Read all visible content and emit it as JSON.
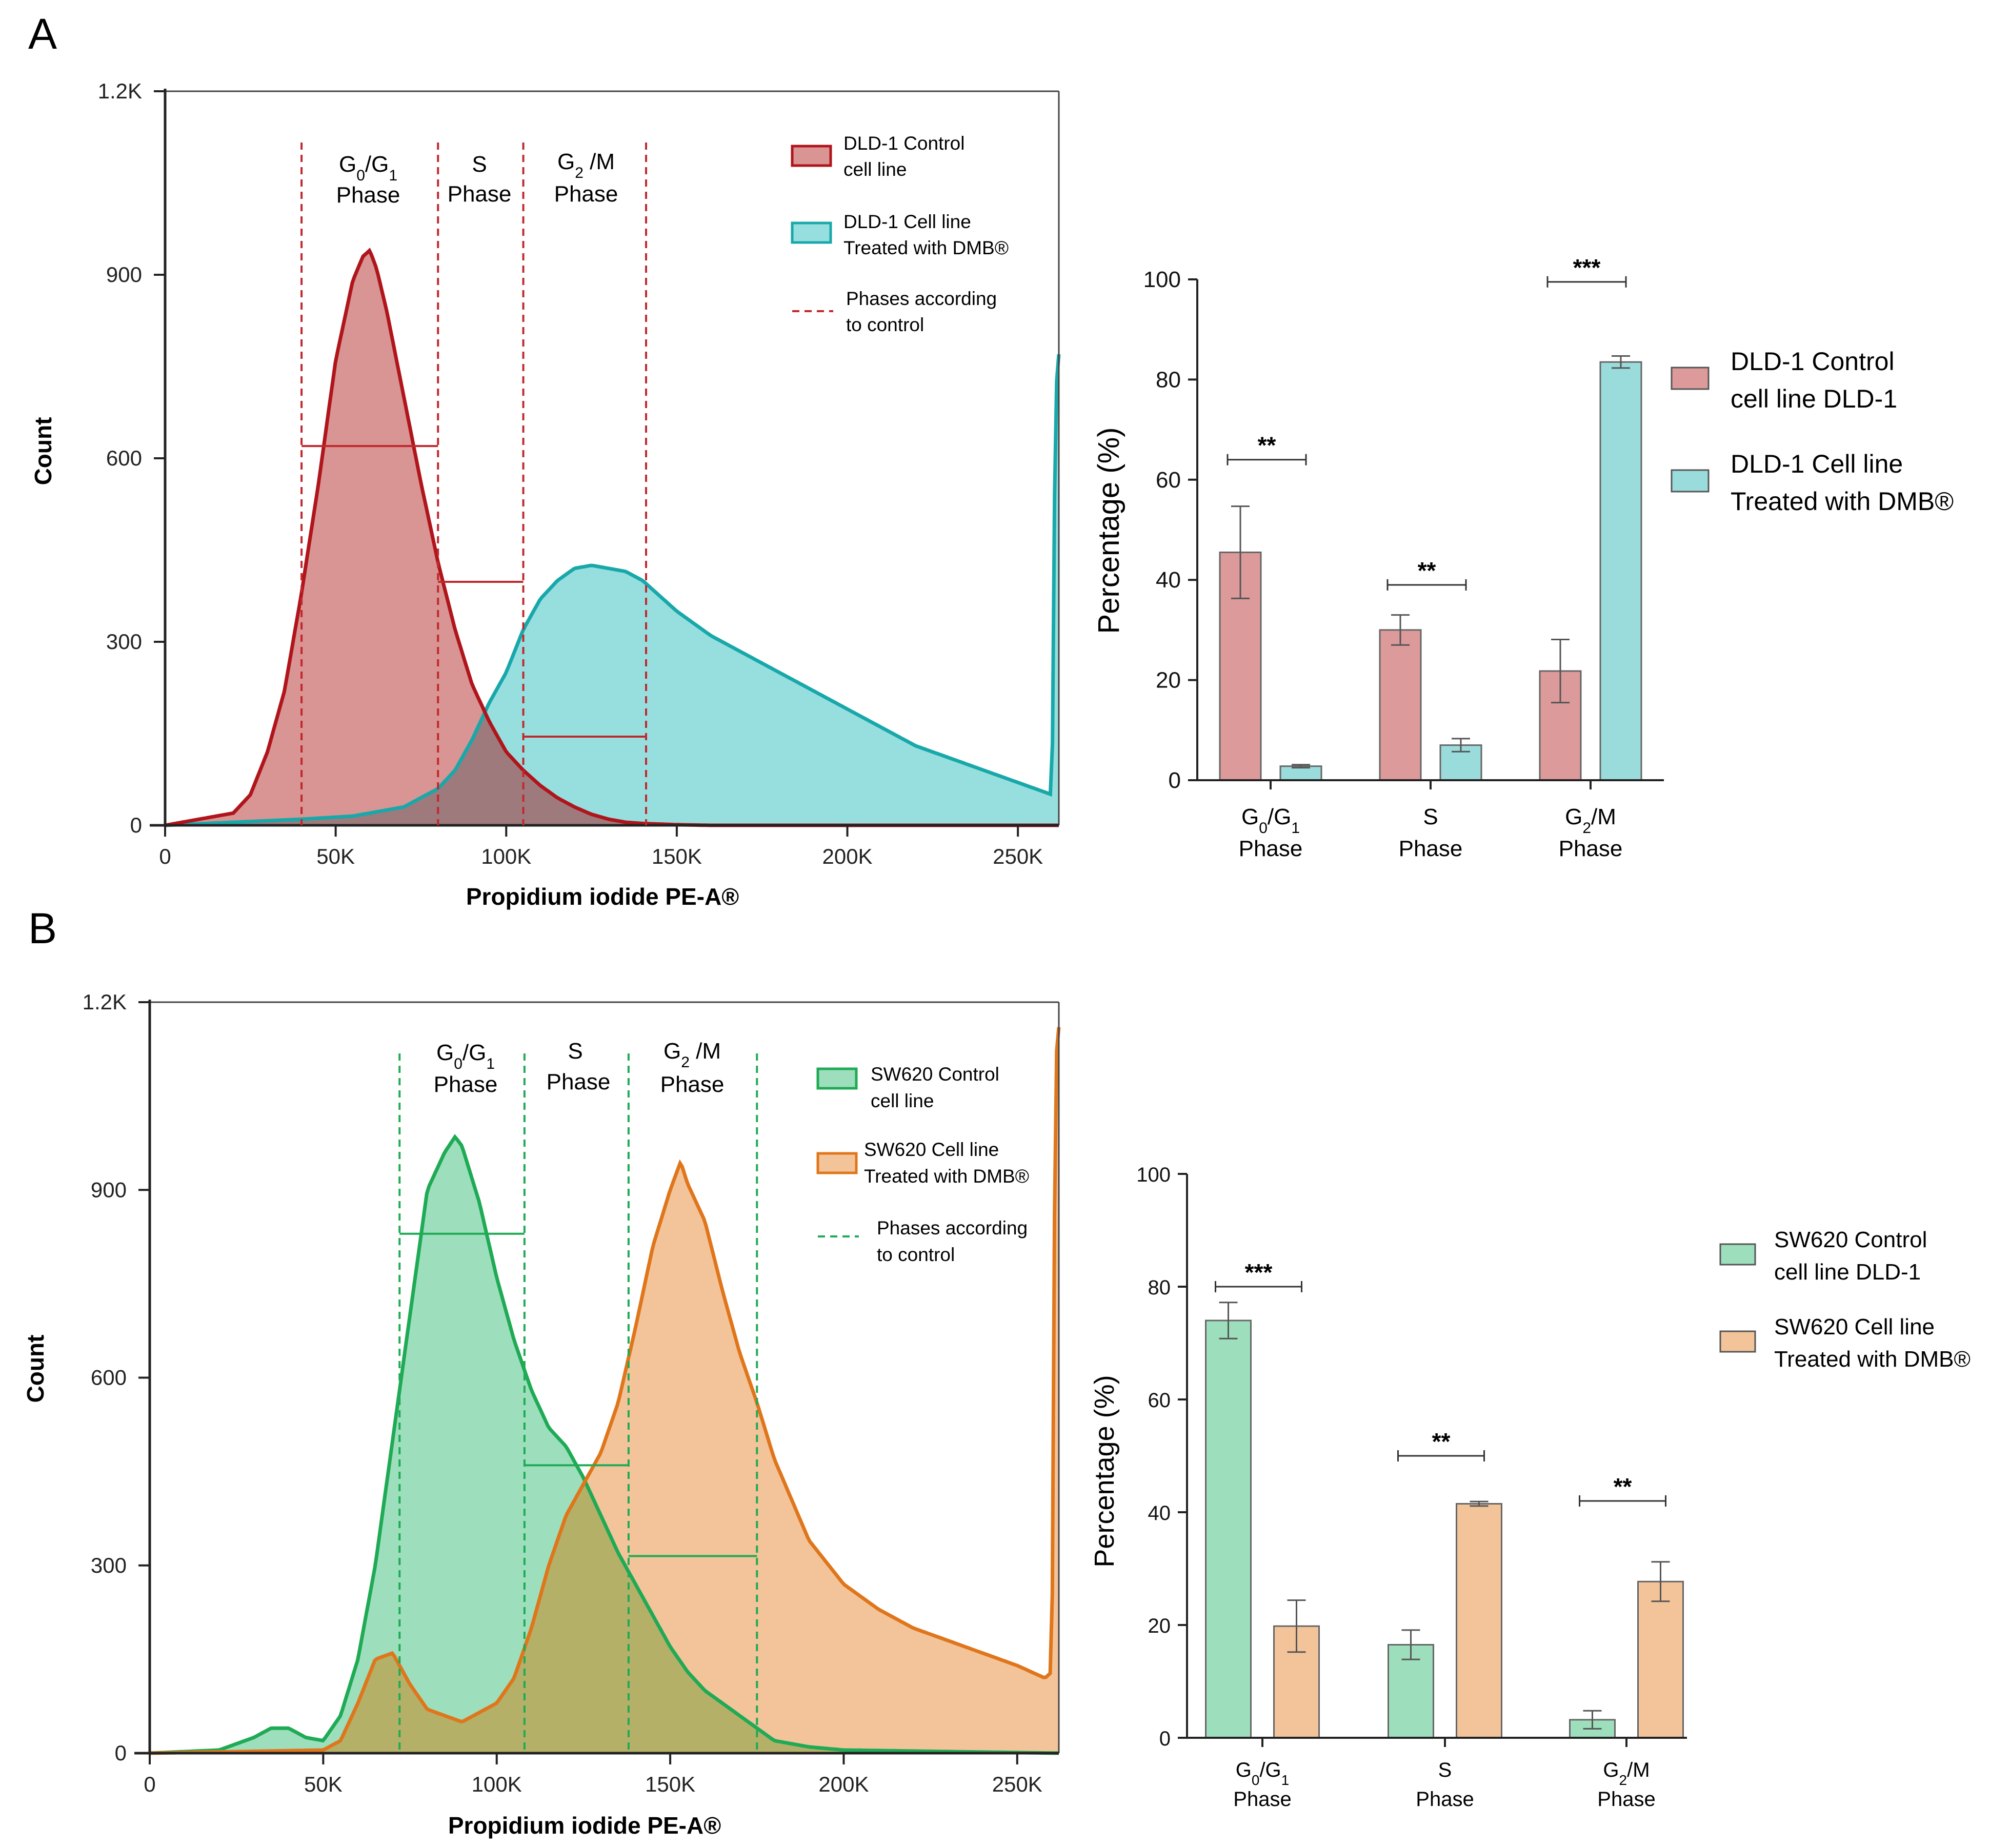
{
  "panels": {
    "A": {
      "label": "A"
    },
    "B": {
      "label": "B"
    }
  },
  "colors": {
    "dld_control_fill": "#d99494",
    "dld_control_line": "#b0151b",
    "dld_treated_fill": "#97dfdf",
    "dld_treated_line": "#19a8aa",
    "dld_overlap": "#9e7a7c",
    "sw_control_fill": "#9ddfbc",
    "sw_control_line": "#1faa55",
    "sw_treated_fill": "#f3c49a",
    "sw_treated_line": "#e0761b",
    "sw_overlap": "#b4b068",
    "phase_line_red": "#c0282d",
    "phase_line_green": "#1faa55",
    "axis": "#222222",
    "bar_control_A": "#dc9a9a",
    "bar_treated_A": "#9adcdc",
    "bar_control_B": "#9ddfbc",
    "bar_treated_B": "#f3c49a"
  },
  "chart_data": [
    {
      "id": "A-histogram",
      "type": "area",
      "xlabel": "Propidium iodide PE-A®",
      "ylabel": "Count",
      "xlim": [
        0,
        262000
      ],
      "ylim": [
        0,
        1200
      ],
      "xticks": [
        "0",
        "50K",
        "100K",
        "150K",
        "200K",
        "250K"
      ],
      "xtick_values": [
        0,
        50000,
        100000,
        150000,
        200000,
        250000
      ],
      "yticks": [
        "0",
        "300",
        "600",
        "900",
        "1.2K"
      ],
      "ytick_values": [
        0,
        300,
        600,
        900,
        1200
      ],
      "phase_lines": [
        40000,
        80000,
        105000,
        141000
      ],
      "phase_labels": [
        {
          "sub": "G0/G1",
          "line1_a": "G",
          "line1_a_sub": "0",
          "line1_b": "/G",
          "line1_b_sub": "1",
          "line2": "Phase"
        },
        {
          "line1": "S",
          "line2": "Phase"
        },
        {
          "line1_a": "G",
          "line1_a_sub": "2",
          "line1_b": " /M",
          "line2": "Phase"
        }
      ],
      "gate_bars": [
        {
          "x1": 40000,
          "x2": 80000,
          "y": 620
        },
        {
          "x1": 80000,
          "x2": 105000,
          "y": 398
        },
        {
          "x1": 105000,
          "x2": 141000,
          "y": 145
        }
      ],
      "legend": [
        {
          "kind": "box",
          "fill": "#d99494",
          "stroke": "#b0151b",
          "line1": "DLD-1 Control",
          "line2": "cell line"
        },
        {
          "kind": "box",
          "fill": "#97dfdf",
          "stroke": "#19a8aa",
          "line1": "DLD-1 Cell line",
          "line2": "Treated with DMB®"
        },
        {
          "kind": "dash",
          "stroke": "#c0282d",
          "line1": "Phases according",
          "line2": "to control"
        }
      ],
      "series": [
        {
          "name": "DLD-1 Control cell line",
          "x": [
            0,
            10000,
            20000,
            25000,
            30000,
            35000,
            40000,
            45000,
            50000,
            55000,
            58000,
            60000,
            62000,
            65000,
            70000,
            75000,
            80000,
            85000,
            90000,
            95000,
            100000,
            105000,
            110000,
            115000,
            120000,
            125000,
            130000,
            135000,
            140000,
            150000,
            160000,
            180000,
            262000
          ],
          "values": [
            0,
            10,
            20,
            50,
            120,
            220,
            380,
            560,
            760,
            890,
            930,
            940,
            910,
            840,
            700,
            560,
            430,
            320,
            230,
            170,
            120,
            90,
            65,
            45,
            30,
            18,
            10,
            5,
            3,
            1,
            0,
            0,
            0
          ]
        },
        {
          "name": "DLD-1 Cell line Treated with DMB®",
          "x": [
            0,
            20000,
            40000,
            55000,
            60000,
            70000,
            80000,
            85000,
            90000,
            95000,
            100000,
            105000,
            110000,
            115000,
            120000,
            125000,
            130000,
            135000,
            140000,
            150000,
            160000,
            170000,
            180000,
            190000,
            200000,
            210000,
            220000,
            230000,
            240000,
            250000,
            255000,
            260000,
            261000,
            262000
          ],
          "values": [
            0,
            5,
            10,
            15,
            20,
            30,
            60,
            90,
            140,
            200,
            250,
            320,
            370,
            400,
            420,
            425,
            420,
            415,
            400,
            350,
            310,
            280,
            250,
            220,
            190,
            160,
            130,
            110,
            90,
            70,
            60,
            50,
            700,
            770
          ]
        }
      ]
    },
    {
      "id": "A-bars",
      "type": "bar",
      "ylabel": "Percentage (%)",
      "ylim": [
        0,
        100
      ],
      "yticks": [
        "0",
        "20",
        "40",
        "60",
        "80",
        "100"
      ],
      "ytick_values": [
        0,
        20,
        40,
        60,
        80,
        100
      ],
      "categories": [
        {
          "a": "G",
          "a_sub": "0",
          "b": "/G",
          "b_sub": "1",
          "line2": "Phase"
        },
        {
          "a": "S",
          "line2": "Phase"
        },
        {
          "a": "G",
          "a_sub": "2",
          "b": "/M",
          "line2": "Phase"
        }
      ],
      "series": [
        {
          "name": "DLD-1 Control cell line DLD-1",
          "values": [
            45.5,
            30,
            21.8
          ],
          "errors": [
            9.2,
            3,
            6.3
          ]
        },
        {
          "name": "DLD-1 Cell line Treated with DMB®",
          "values": [
            2.8,
            7,
            83.5
          ],
          "errors": [
            0.3,
            1.3,
            1.2
          ]
        }
      ],
      "significance": [
        "**",
        "**",
        "***"
      ],
      "sig_y": [
        64,
        39,
        99.5
      ],
      "legend": [
        {
          "line1": "DLD-1 Control",
          "line2": "cell line DLD-1"
        },
        {
          "line1": "DLD-1 Cell line",
          "line2": "Treated with DMB®"
        }
      ]
    },
    {
      "id": "B-histogram",
      "type": "area",
      "xlabel": "Propidium iodide PE-A®",
      "ylabel": "Count",
      "xlim": [
        0,
        262000
      ],
      "ylim": [
        0,
        1200
      ],
      "xticks": [
        "0",
        "50K",
        "100K",
        "150K",
        "200K",
        "250K"
      ],
      "xtick_values": [
        0,
        50000,
        100000,
        150000,
        200000,
        250000
      ],
      "yticks": [
        "0",
        "300",
        "600",
        "900",
        "1.2K"
      ],
      "ytick_values": [
        0,
        300,
        600,
        900,
        1200
      ],
      "phase_lines": [
        72000,
        108000,
        138000,
        175000
      ],
      "phase_labels": [
        {
          "line1_a": "G",
          "line1_a_sub": "0",
          "line1_b": "/G",
          "line1_b_sub": "1",
          "line2": "Phase"
        },
        {
          "line1": "S",
          "line2": "Phase"
        },
        {
          "line1_a": "G",
          "line1_a_sub": "2",
          "line1_b": " /M",
          "line2": "Phase"
        }
      ],
      "gate_bars": [
        {
          "x1": 72000,
          "x2": 108000,
          "y": 830
        },
        {
          "x1": 108000,
          "x2": 138000,
          "y": 460
        },
        {
          "x1": 138000,
          "x2": 175000,
          "y": 315
        }
      ],
      "legend": [
        {
          "kind": "box",
          "fill": "#9ddfbc",
          "stroke": "#1faa55",
          "line1": "SW620 Control",
          "line2": "cell line"
        },
        {
          "kind": "box",
          "fill": "#f3c49a",
          "stroke": "#e0761b",
          "line1": "SW620 Cell line",
          "line2": "Treated with DMB®"
        },
        {
          "kind": "dash",
          "stroke": "#1faa55",
          "line1": "Phases according",
          "line2": "to control"
        }
      ],
      "series": [
        {
          "name": "SW620 Control cell line",
          "x": [
            0,
            20000,
            30000,
            35000,
            40000,
            45000,
            50000,
            55000,
            60000,
            65000,
            70000,
            75000,
            80000,
            85000,
            88000,
            90000,
            95000,
            100000,
            105000,
            110000,
            115000,
            120000,
            125000,
            130000,
            135000,
            140000,
            145000,
            150000,
            155000,
            160000,
            170000,
            175000,
            180000,
            190000,
            200000,
            262000
          ],
          "values": [
            0,
            5,
            25,
            40,
            40,
            25,
            20,
            60,
            150,
            300,
            500,
            700,
            900,
            960,
            985,
            970,
            880,
            760,
            660,
            580,
            520,
            490,
            440,
            380,
            320,
            270,
            220,
            170,
            130,
            100,
            60,
            40,
            20,
            10,
            5,
            0
          ]
        },
        {
          "name": "SW620 Cell line Treated with DMB®",
          "x": [
            0,
            50000,
            55000,
            60000,
            65000,
            70000,
            75000,
            80000,
            90000,
            100000,
            105000,
            110000,
            115000,
            120000,
            125000,
            130000,
            135000,
            140000,
            145000,
            150000,
            153000,
            155000,
            160000,
            165000,
            170000,
            175000,
            180000,
            190000,
            200000,
            210000,
            220000,
            230000,
            240000,
            250000,
            258000,
            260000,
            261000,
            262000
          ],
          "values": [
            0,
            5,
            20,
            80,
            150,
            160,
            110,
            70,
            50,
            80,
            120,
            200,
            300,
            380,
            430,
            480,
            560,
            680,
            810,
            900,
            945,
            910,
            850,
            740,
            640,
            560,
            470,
            340,
            270,
            230,
            200,
            180,
            160,
            140,
            120,
            130,
            1100,
            1160
          ]
        }
      ]
    },
    {
      "id": "B-bars",
      "type": "bar",
      "ylabel": "Percentage (%)",
      "ylim": [
        0,
        100
      ],
      "yticks": [
        "0",
        "20",
        "40",
        "60",
        "80",
        "100"
      ],
      "ytick_values": [
        0,
        20,
        40,
        60,
        80,
        100
      ],
      "categories": [
        {
          "a": "G",
          "a_sub": "0",
          "b": "/G",
          "b_sub": "1",
          "line2": "Phase"
        },
        {
          "a": "S",
          "line2": "Phase"
        },
        {
          "a": "G",
          "a_sub": "2",
          "b": "/M",
          "line2": "Phase"
        }
      ],
      "series": [
        {
          "name": "SW620 Control cell line DLD-1",
          "values": [
            74,
            16.5,
            3.2
          ],
          "errors": [
            3.2,
            2.6,
            1.6
          ]
        },
        {
          "name": "SW620 Cell line Treated with DMB®",
          "values": [
            19.8,
            41.5,
            27.7
          ],
          "errors": [
            4.6,
            0.4,
            3.5
          ]
        }
      ],
      "significance": [
        "***",
        "**",
        "**"
      ],
      "sig_y": [
        80,
        50,
        42
      ],
      "legend": [
        {
          "line1": "SW620 Control",
          "line2": "cell line DLD-1"
        },
        {
          "line1": "SW620 Cell line",
          "line2": "Treated with DMB®"
        }
      ]
    }
  ]
}
